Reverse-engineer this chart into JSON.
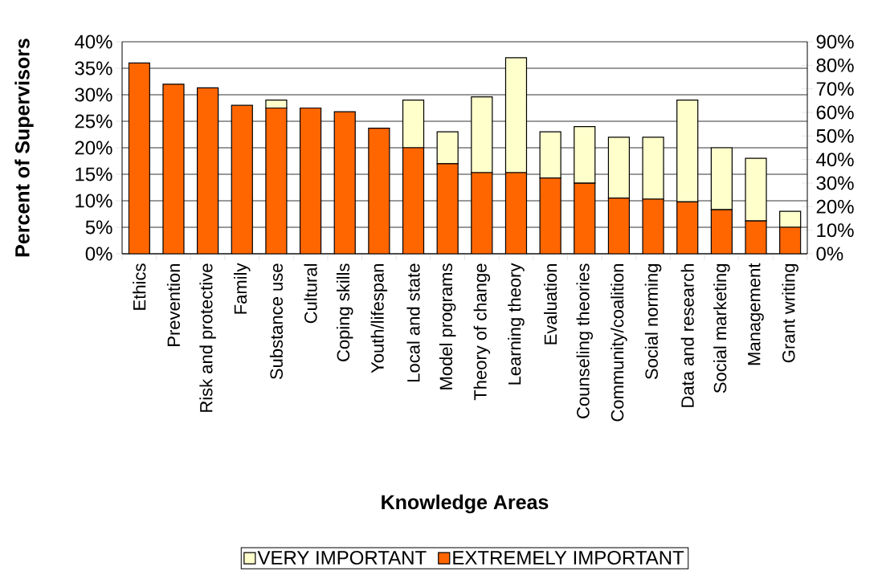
{
  "chart_data": {
    "type": "bar",
    "stacked": true,
    "xlabel": "Knowledge Areas",
    "ylabel": "Percent of Supervisors",
    "categories": [
      "Ethics",
      "Prevention",
      "Risk and protective",
      "Family",
      "Substance use",
      "Cultural",
      "Coping skills",
      "Youth/lifespan",
      "Local and state",
      "Model programs",
      "Theory of change",
      "Learning theory",
      "Evaluation",
      "Counseling theories",
      "Community/coalition",
      "Social norming",
      "Data and research",
      "Social marketing",
      "Management",
      "Grant writing"
    ],
    "series": [
      {
        "name": "EXTREMELY IMPORTANT",
        "color": "#ff6600",
        "values": [
          36,
          32,
          31.3,
          28,
          27.5,
          27.5,
          26.8,
          23.7,
          20,
          17,
          15.3,
          15.3,
          14.3,
          13.3,
          10.5,
          10.3,
          9.8,
          8.3,
          6.2,
          5
        ]
      },
      {
        "name": "VERY IMPORTANT",
        "color": "#ffffcc",
        "values": [
          null,
          null,
          null,
          null,
          1.5,
          null,
          null,
          null,
          9,
          6,
          14.3,
          21.7,
          8.7,
          10.7,
          11.5,
          11.7,
          19.2,
          11.7,
          11.8,
          3
        ]
      }
    ],
    "ylim": [
      0,
      40
    ],
    "yticks": [
      {
        "value": 0,
        "label": "0%"
      },
      {
        "value": 5,
        "label": "5%"
      },
      {
        "value": 10,
        "label": "10%"
      },
      {
        "value": 15,
        "label": "15%"
      },
      {
        "value": 20,
        "label": "20%"
      },
      {
        "value": 25,
        "label": "25%"
      },
      {
        "value": 30,
        "label": "30%"
      },
      {
        "value": 35,
        "label": "35%"
      },
      {
        "value": 40,
        "label": "40%"
      }
    ],
    "y2lim": [
      0,
      90
    ],
    "y2ticks": [
      {
        "value": 0,
        "label": "0%"
      },
      {
        "value": 10,
        "label": "10%"
      },
      {
        "value": 20,
        "label": "20%"
      },
      {
        "value": 30,
        "label": "30%"
      },
      {
        "value": 40,
        "label": "40%"
      },
      {
        "value": 50,
        "label": "50%"
      },
      {
        "value": 60,
        "label": "60%"
      },
      {
        "value": 70,
        "label": "70%"
      },
      {
        "value": 80,
        "label": "80%"
      },
      {
        "value": 90,
        "label": "90%"
      }
    ],
    "grid": "y",
    "legend": "bottom"
  }
}
